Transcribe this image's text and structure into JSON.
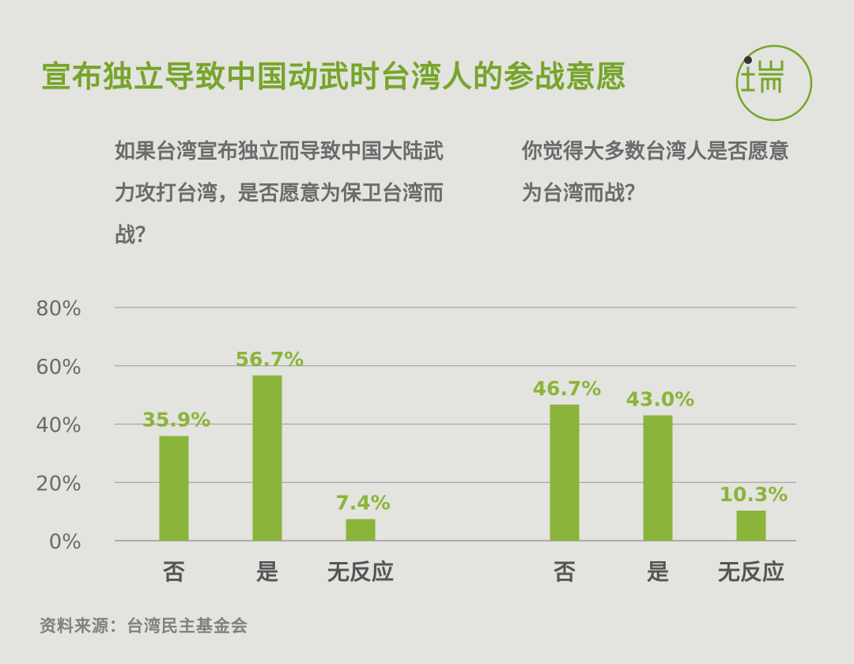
{
  "title": "宣布独立导致中国动武时台湾人的参战意愿",
  "logo": {
    "text": "正而",
    "icon": "logo-icon"
  },
  "questions": {
    "left": "如果台湾宣布独立而导致中国大陆武力攻打台湾，是否愿意为保卫台湾而战？",
    "right": "你觉得大多数台湾人是否愿意为台湾而战？"
  },
  "source": "资料来源：台湾民主基金会",
  "colors": {
    "accent": "#76a52a",
    "bar": "#8bb43a",
    "text": "#6b6b6b",
    "grid": "#9a9a96"
  },
  "chart_data": {
    "type": "bar",
    "y_ticks": [
      "0%",
      "20%",
      "40%",
      "60%",
      "80%"
    ],
    "ylim": [
      0,
      80
    ],
    "groups": [
      {
        "categories": [
          "否",
          "是",
          "无反应"
        ],
        "values": [
          35.9,
          56.7,
          7.4
        ],
        "labels": [
          "35.9%",
          "56.7%",
          "7.4%"
        ]
      },
      {
        "categories": [
          "否",
          "是",
          "无反应"
        ],
        "values": [
          46.7,
          43.0,
          10.3
        ],
        "labels": [
          "46.7%",
          "43.0%",
          "10.3%"
        ]
      }
    ]
  }
}
